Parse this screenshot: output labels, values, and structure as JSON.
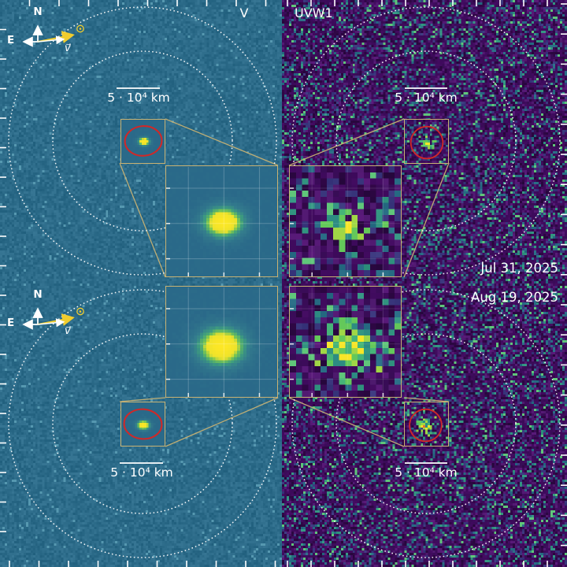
{
  "figure": {
    "filter_labels": {
      "left": "V",
      "right": "UVW1"
    },
    "epoch_labels": {
      "first": "Jul 31, 2025",
      "second": "Aug 19, 2025"
    },
    "scale_bar_label": "5 · 10⁴ km",
    "compass": {
      "north": "N",
      "east": "E",
      "velocity": "v⃗"
    },
    "colors": {
      "v_background": "#2e6f8e",
      "uvw1_background": "#42095c",
      "inset_border": "#c8b273",
      "aperture_red": "#d02828",
      "sun_arrow_yellow": "#f0cd2e",
      "annotation_white": "#ffffff",
      "source_peak_yellow": "#fde725"
    }
  }
}
